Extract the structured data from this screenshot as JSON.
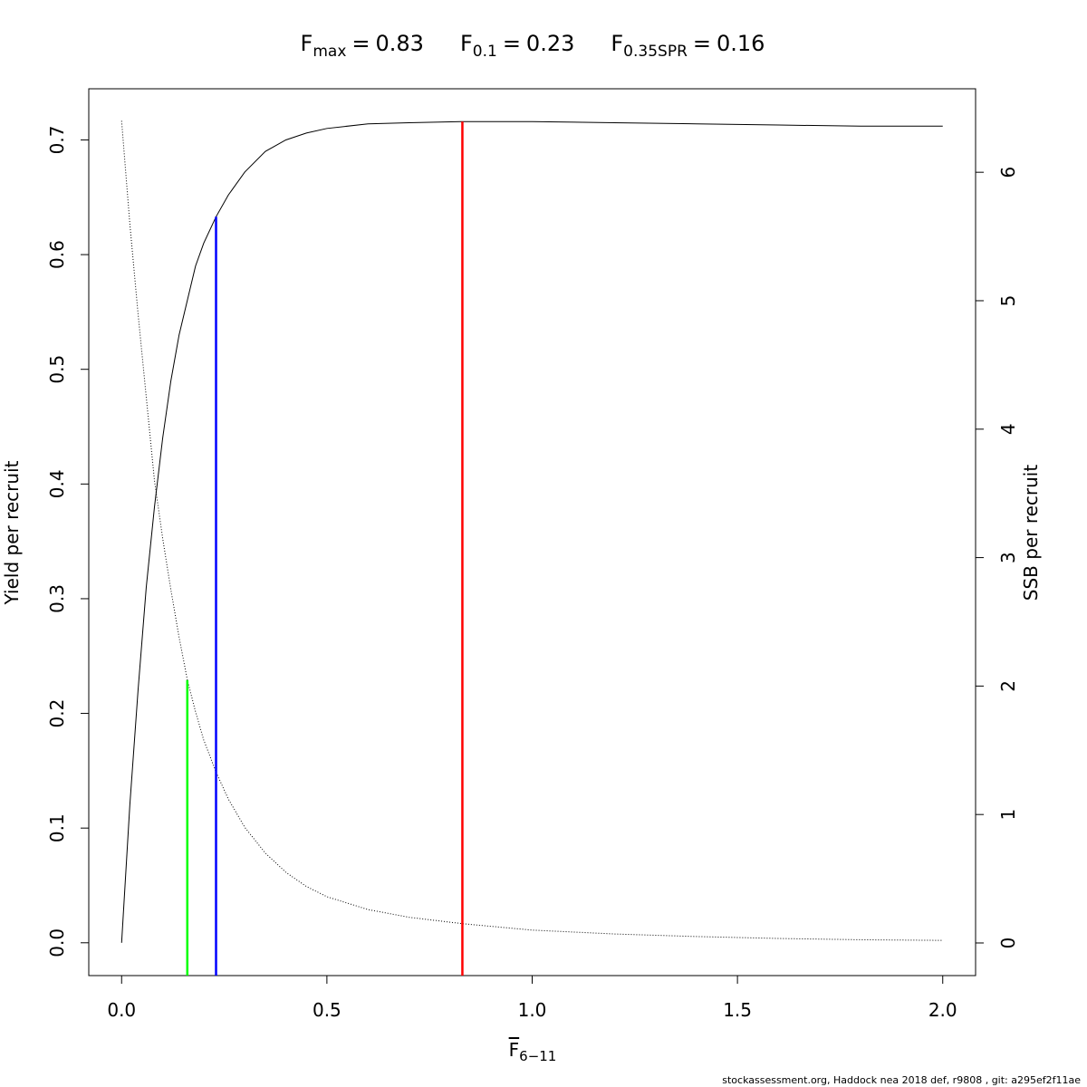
{
  "chart_data": {
    "type": "line",
    "title_parts": [
      {
        "label": "F",
        "subscript": "max",
        "relation": "=",
        "value": 0.83,
        "color": "#ff0000",
        "height": 0.716
      },
      {
        "label": "F",
        "subscript": "0.1",
        "relation": "=",
        "value": 0.23,
        "color": "#0000ff",
        "height": 0.633
      },
      {
        "label": "F",
        "subscript": "0.35SPR",
        "relation": "=",
        "value": 0.16,
        "color": "#00ff00",
        "height": 0.229
      }
    ],
    "x_label": {
      "label": "F",
      "subscript": "6−11"
    },
    "y_label": "Yield per recruit",
    "y2_label": "SSB per recruit",
    "footer": "stockassessment.org, Haddock  nea  2018  def, r9808 , git: a295ef2f11ae",
    "x": [
      0,
      0.02,
      0.04,
      0.06,
      0.08,
      0.1,
      0.12,
      0.14,
      0.16,
      0.18,
      0.2,
      0.23,
      0.26,
      0.3,
      0.35,
      0.4,
      0.45,
      0.5,
      0.6,
      0.7,
      0.83,
      1.0,
      1.2,
      1.4,
      1.6,
      1.8,
      2.0
    ],
    "series": [
      {
        "name": "Yield per recruit",
        "color": "#000000",
        "dash": "solid",
        "values": [
          0,
          0.12,
          0.22,
          0.31,
          0.38,
          0.44,
          0.49,
          0.53,
          0.56,
          0.59,
          0.61,
          0.633,
          0.652,
          0.672,
          0.69,
          0.7,
          0.706,
          0.71,
          0.714,
          0.715,
          0.716,
          0.716,
          0.715,
          0.714,
          0.713,
          0.712,
          0.712
        ]
      },
      {
        "name": "SSB per recruit",
        "color": "#000000",
        "dash": "dotted",
        "axis": "y2",
        "values": [
          6.4,
          5.6,
          4.9,
          4.25,
          3.6,
          3.15,
          2.75,
          2.38,
          2.05,
          1.8,
          1.58,
          1.33,
          1.12,
          0.9,
          0.7,
          0.55,
          0.44,
          0.36,
          0.26,
          0.2,
          0.15,
          0.1,
          0.07,
          0.05,
          0.035,
          0.025,
          0.02
        ]
      }
    ],
    "xlim": [
      -0.08,
      2.08
    ],
    "xticks": [
      {
        "value": 0,
        "label": "0.0"
      },
      0.5,
      {
        "value": 1,
        "label": "1.0"
      },
      1.5,
      {
        "value": 2,
        "label": "2.0"
      }
    ],
    "ylim": [
      -0.0286,
      0.7446
    ],
    "yticks": [
      {
        "value": 0,
        "label": "0.0"
      },
      0.1,
      0.2,
      0.3,
      0.4,
      0.5,
      0.6,
      0.7
    ],
    "y2lim": [
      -0.254,
      6.65
    ],
    "y2ticks": [
      0,
      1,
      2,
      3,
      4,
      5,
      6
    ]
  }
}
